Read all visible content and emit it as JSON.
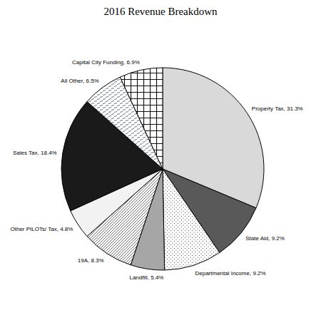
{
  "chart_data": {
    "type": "pie",
    "title": "2016 Revenue Breakdown",
    "categories": [
      "Property Tax",
      "State Aid",
      "Departmental Income",
      "Landfill",
      "19A",
      "Other PILOTs/ Tax",
      "Sales Tax",
      "All Other",
      "Capital City Funding"
    ],
    "values": [
      31.3,
      9.2,
      9.2,
      5.4,
      8.3,
      4.8,
      18.4,
      6.5,
      6.9
    ],
    "value_labels": [
      "Property Tax, 31.3%",
      "State Aid, 9.2%",
      "Departmental Income, 9.2%",
      "Landfill, 5.4%",
      "19A, 8.3%",
      "Other PILOTs/ Tax, 4.8%",
      "Sales Tax, 18.4%",
      "All Other, 6.5%",
      "Capital City Funding, 6.9%"
    ],
    "colors": [
      "#d9d9d9",
      "#595959",
      "#ffffff",
      "#a6a6a6",
      "#ffffff",
      "#f2f2f2",
      "#1a1a1a",
      "#ffffff",
      "#ffffff"
    ],
    "data_labels": true
  }
}
